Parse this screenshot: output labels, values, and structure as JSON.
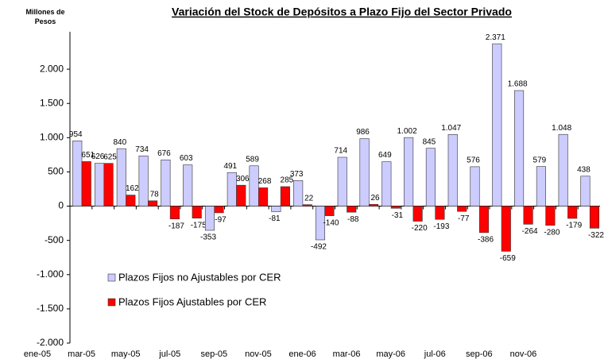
{
  "chart_data": {
    "type": "bar",
    "title": "Variación del Stock de Depósitos a Plazo Fijo del Sector Privado",
    "y_label": "Millones de Pesos",
    "categories": [
      "ene-05",
      null,
      "mar-05",
      null,
      "may-05",
      null,
      "jul-05",
      null,
      "sep-05",
      null,
      "nov-05",
      null,
      "ene-06",
      null,
      "mar-06",
      null,
      "may-06",
      null,
      "jul-06",
      null,
      "sep-06",
      null,
      "nov-06",
      null
    ],
    "series": [
      {
        "name": "Plazos Fijos no Ajustables por CER",
        "color": "#ccccff",
        "values": [
          954,
          626,
          840,
          734,
          676,
          603,
          -353,
          491,
          589,
          -81,
          373,
          -492,
          714,
          986,
          649,
          1002,
          845,
          1047,
          576,
          2371,
          1688,
          579,
          1048,
          438
        ],
        "value_labels": [
          "954",
          "626",
          "840",
          "734",
          "676",
          "603",
          "-353",
          "491",
          "589",
          "-81",
          "373",
          "-492",
          "714",
          "986",
          "649",
          "1.002",
          "845",
          "1.047",
          "576",
          "2.371",
          "1.688",
          "579",
          "1.048",
          "438"
        ]
      },
      {
        "name": "Plazos Fijos Ajustables por CER",
        "color": "#ff0000",
        "values": [
          651,
          625,
          162,
          78,
          -187,
          -175,
          -97,
          306,
          268,
          285,
          22,
          -140,
          -88,
          26,
          -31,
          -220,
          -193,
          -77,
          -386,
          -659,
          -264,
          -280,
          -179,
          -322
        ]
      }
    ],
    "ylim": [
      -2000,
      2500
    ],
    "yticks": [
      {
        "value": -2000,
        "label": "-2.000"
      },
      {
        "value": -1500,
        "label": "-1.500"
      },
      {
        "value": -1000,
        "label": "-1.000"
      },
      -500,
      0,
      500,
      {
        "value": 1000,
        "label": "1.000"
      },
      {
        "value": 1500,
        "label": "1.500"
      },
      {
        "value": 2000,
        "label": "2.000"
      }
    ],
    "grid": false
  }
}
